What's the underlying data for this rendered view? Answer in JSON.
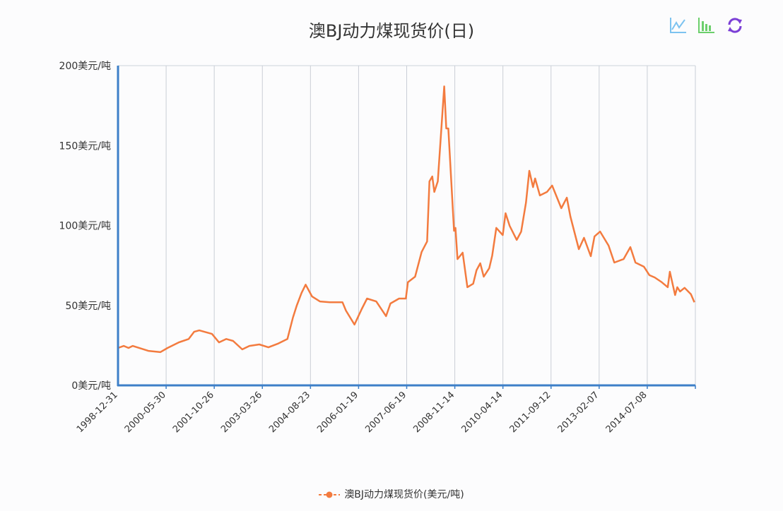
{
  "toolbox": {
    "icons": [
      "line-chart-icon",
      "bar-chart-icon",
      "restore-icon"
    ],
    "colors": {
      "line": "#7cc3f0",
      "bar": "#6ccf6c",
      "restore": "#7b3fd6"
    }
  },
  "chart_data": {
    "type": "line",
    "title": "澳BJ动力煤现货价(日)",
    "xlabel": "",
    "ylabel": "",
    "x_tick_labels": [
      "1998-12-31",
      "2000-05-30",
      "2001-10-26",
      "2003-03-26",
      "2004-08-23",
      "2006-01-19",
      "2007-06-19",
      "2008-11-14",
      "2010-04-14",
      "2011-09-12",
      "2013-02-07",
      "2014-07-08"
    ],
    "y_tick_labels": [
      "0美元/吨",
      "50美元/吨",
      "100美元/吨",
      "150美元/吨",
      "200美元/吨"
    ],
    "y_ticks": [
      0,
      50,
      100,
      150,
      200
    ],
    "ylim": [
      0,
      200
    ],
    "xlim": [
      "1998-12-31",
      "2015-11-20"
    ],
    "grid": {
      "vertical": true,
      "horizontal": false
    },
    "legend_position": "bottom",
    "axis_color": "#3d7fc8",
    "series": [
      {
        "name": "澳BJ动力煤现货价(美元/吨)",
        "color": "#f37b3f",
        "points": [
          [
            "1998-12-31",
            23.4
          ],
          [
            "1999-03-03",
            24.7
          ],
          [
            "1999-04-23",
            23.4
          ],
          [
            "1999-06-06",
            24.7
          ],
          [
            "1999-11-21",
            21.6
          ],
          [
            "2000-03-29",
            20.8
          ],
          [
            "2000-06-14",
            23.4
          ],
          [
            "2000-10-12",
            26.9
          ],
          [
            "2001-01-26",
            29.0
          ],
          [
            "2001-03-25",
            33.5
          ],
          [
            "2001-05-19",
            34.4
          ],
          [
            "2001-10-01",
            32.2
          ],
          [
            "2001-12-16",
            26.9
          ],
          [
            "2002-03-04",
            29.0
          ],
          [
            "2002-05-16",
            27.8
          ],
          [
            "2002-08-22",
            22.5
          ],
          [
            "2002-11-07",
            24.7
          ],
          [
            "2003-02-21",
            25.6
          ],
          [
            "2003-05-30",
            23.8
          ],
          [
            "2003-09-06",
            26.0
          ],
          [
            "2003-12-20",
            29.0
          ],
          [
            "2004-02-17",
            42.4
          ],
          [
            "2004-03-29",
            49.9
          ],
          [
            "2004-05-19",
            57.8
          ],
          [
            "2004-07-02",
            63.0
          ],
          [
            "2004-09-09",
            55.6
          ],
          [
            "2004-12-02",
            52.5
          ],
          [
            "2005-03-18",
            52.0
          ],
          [
            "2005-07-31",
            52.0
          ],
          [
            "2005-09-06",
            46.8
          ],
          [
            "2005-12-06",
            38.0
          ],
          [
            "2006-02-21",
            47.7
          ],
          [
            "2006-04-20",
            54.3
          ],
          [
            "2006-07-27",
            52.5
          ],
          [
            "2006-11-10",
            43.3
          ],
          [
            "2006-12-27",
            51.2
          ],
          [
            "2007-03-29",
            54.3
          ],
          [
            "2007-06-10",
            54.3
          ],
          [
            "2007-07-02",
            64.5
          ],
          [
            "2007-09-17",
            68.0
          ],
          [
            "2007-11-25",
            83.4
          ],
          [
            "2008-01-23",
            90.0
          ],
          [
            "2008-02-17",
            127.6
          ],
          [
            "2008-03-18",
            130.7
          ],
          [
            "2008-04-09",
            121.0
          ],
          [
            "2008-05-16",
            127.6
          ],
          [
            "2008-07-24",
            187.0
          ],
          [
            "2008-08-15",
            160.7
          ],
          [
            "2008-09-06",
            160.7
          ],
          [
            "2008-11-06",
            96.7
          ],
          [
            "2008-11-21",
            98.5
          ],
          [
            "2008-12-13",
            79.0
          ],
          [
            "2009-02-06",
            83.0
          ],
          [
            "2009-03-29",
            61.4
          ],
          [
            "2009-05-30",
            63.6
          ],
          [
            "2009-07-05",
            72.0
          ],
          [
            "2009-08-14",
            76.4
          ],
          [
            "2009-09-20",
            68.0
          ],
          [
            "2009-11-18",
            73.3
          ],
          [
            "2009-12-20",
            81.2
          ],
          [
            "2010-02-02",
            98.5
          ],
          [
            "2010-04-12",
            94.0
          ],
          [
            "2010-05-12",
            107.7
          ],
          [
            "2010-06-25",
            99.8
          ],
          [
            "2010-09-09",
            91.0
          ],
          [
            "2010-10-27",
            96.2
          ],
          [
            "2010-12-17",
            114.3
          ],
          [
            "2011-01-22",
            134.2
          ],
          [
            "2011-03-03",
            124.0
          ],
          [
            "2011-03-25",
            129.4
          ],
          [
            "2011-05-16",
            118.8
          ],
          [
            "2011-07-31",
            121.0
          ],
          [
            "2011-09-24",
            125.0
          ],
          [
            "2011-12-31",
            110.8
          ],
          [
            "2012-02-28",
            117.4
          ],
          [
            "2012-04-06",
            105.5
          ],
          [
            "2012-07-05",
            85.2
          ],
          [
            "2012-08-29",
            92.3
          ],
          [
            "2012-11-10",
            80.8
          ],
          [
            "2012-12-20",
            93.2
          ],
          [
            "2013-02-17",
            96.2
          ],
          [
            "2013-05-19",
            87.4
          ],
          [
            "2013-07-20",
            76.8
          ],
          [
            "2013-10-27",
            79.0
          ],
          [
            "2014-01-08",
            86.5
          ],
          [
            "2014-03-03",
            76.8
          ],
          [
            "2014-06-02",
            74.2
          ],
          [
            "2014-07-31",
            68.9
          ],
          [
            "2014-09-24",
            67.5
          ],
          [
            "2014-12-06",
            64.5
          ],
          [
            "2015-02-06",
            61.4
          ],
          [
            "2015-02-28",
            71.1
          ],
          [
            "2015-04-23",
            56.5
          ],
          [
            "2015-05-16",
            61.4
          ],
          [
            "2015-06-14",
            58.7
          ],
          [
            "2015-07-31",
            61.0
          ],
          [
            "2015-10-05",
            57.0
          ],
          [
            "2015-11-10",
            52.0
          ]
        ]
      }
    ]
  }
}
